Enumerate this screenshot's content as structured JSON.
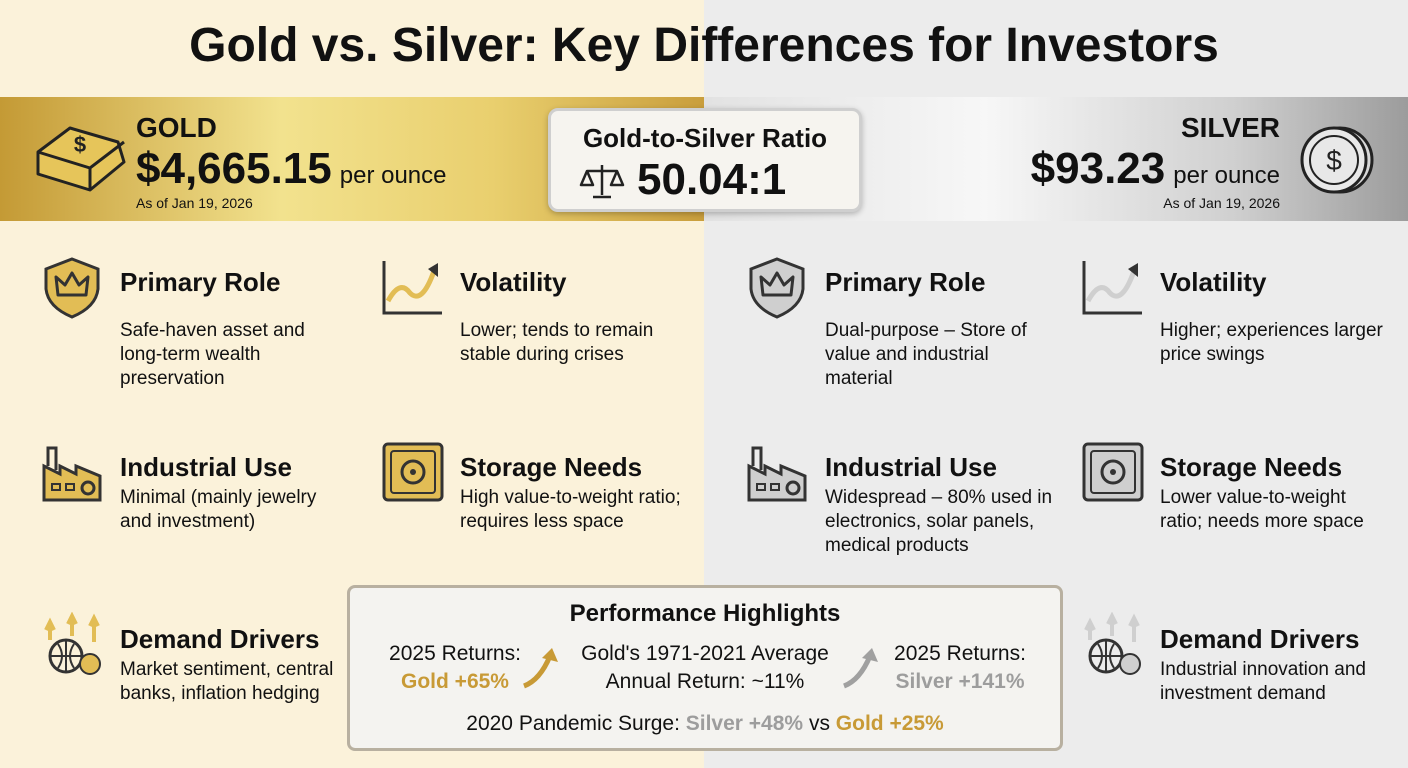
{
  "title": "Gold vs. Silver: Key Differences for Investors",
  "gold": {
    "name": "GOLD",
    "price": "$4,665.15",
    "unit": "per ounce",
    "date": "As of Jan 19, 2026"
  },
  "ratio": {
    "label": "Gold-to-Silver Ratio",
    "value": "50.04:1"
  },
  "silver": {
    "name": "SILVER",
    "price": "$93.23",
    "unit": "per ounce",
    "date": "As of Jan 19, 2026"
  },
  "gold_cards": [
    {
      "title": "Primary Role",
      "text": "Safe-haven asset and long-term wealth preservation"
    },
    {
      "title": "Volatility",
      "text": "Lower; tends to remain stable during crises"
    },
    {
      "title": "Industrial Use",
      "text": "Minimal (mainly jewelry and investment)"
    },
    {
      "title": "Storage Needs",
      "text": "High value-to-weight ratio; requires less space"
    },
    {
      "title": "Demand Drivers",
      "text": "Market sentiment, central banks, inflation hedging"
    }
  ],
  "silver_cards": [
    {
      "title": "Primary Role",
      "text": "Dual-purpose – Store of value and industrial material"
    },
    {
      "title": "Volatility",
      "text": "Higher; experiences larger price swings"
    },
    {
      "title": "Industrial Use",
      "text": "Widespread – 80% used in electronics, solar panels, medical products"
    },
    {
      "title": "Storage Needs",
      "text": "Lower value-to-weight ratio; needs more space"
    },
    {
      "title": "Demand Drivers",
      "text": "Industrial innovation and investment demand"
    }
  ],
  "performance": {
    "title": "Performance Highlights",
    "gold_returns": {
      "label": "2025 Returns:",
      "value": "Gold +65%"
    },
    "average": {
      "line1": "Gold's 1971-2021 Average",
      "line2": "Annual Return: ~11%"
    },
    "silver_returns": {
      "label": "2025 Returns:",
      "value": "Silver +141%"
    },
    "surge": {
      "label": "2020 Pandemic Surge:",
      "silver": "Silver +48%",
      "vs": "vs",
      "gold": "Gold +25%"
    }
  }
}
